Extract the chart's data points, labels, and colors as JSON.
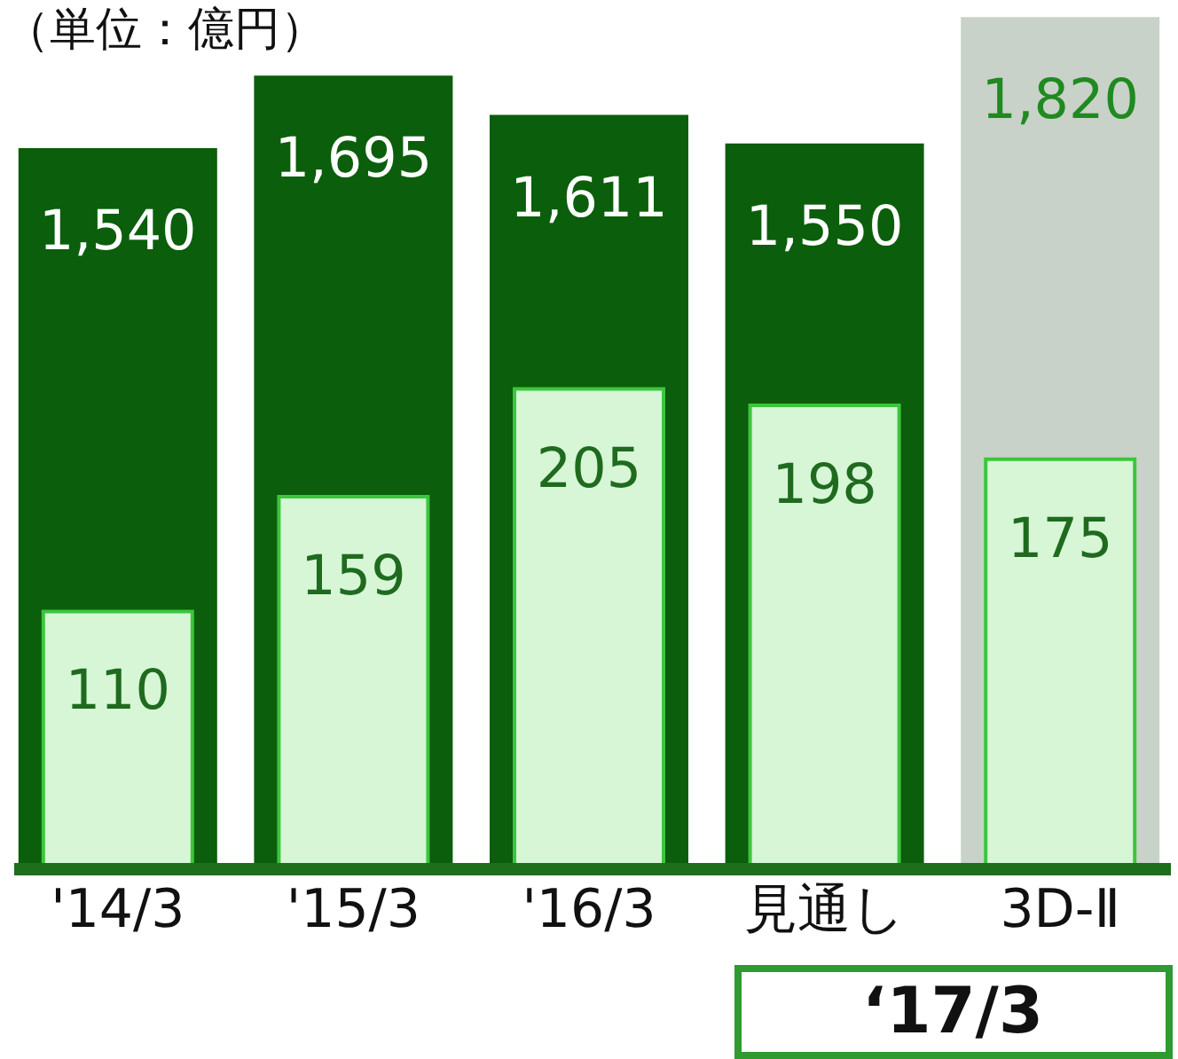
{
  "chart_data": {
    "type": "bar",
    "title": "（単位：億円）",
    "categories": [
      "'14/3",
      "'15/3",
      "'16/3",
      "見通し",
      "3D-Ⅱ"
    ],
    "grid": false,
    "tick_labels": "x",
    "annotations": [
      "‘17/3"
    ],
    "series": [
      {
        "colors": [
          "#0b5e0b",
          "#0b5e0b",
          "#0b5e0b",
          "#0b5e0b",
          "#c8d2c8"
        ],
        "values": [
          1540,
          1695,
          1611,
          1550,
          1820
        ],
        "value_labels": [
          "1,540",
          "1,695",
          "1,611",
          "1,550",
          "1,820"
        ]
      },
      {
        "axis": "y2",
        "color": "#d6f6d6",
        "values": [
          110,
          159,
          205,
          198,
          175
        ],
        "value_labels": [
          "110",
          "159",
          "205",
          "198",
          "175"
        ]
      }
    ]
  }
}
